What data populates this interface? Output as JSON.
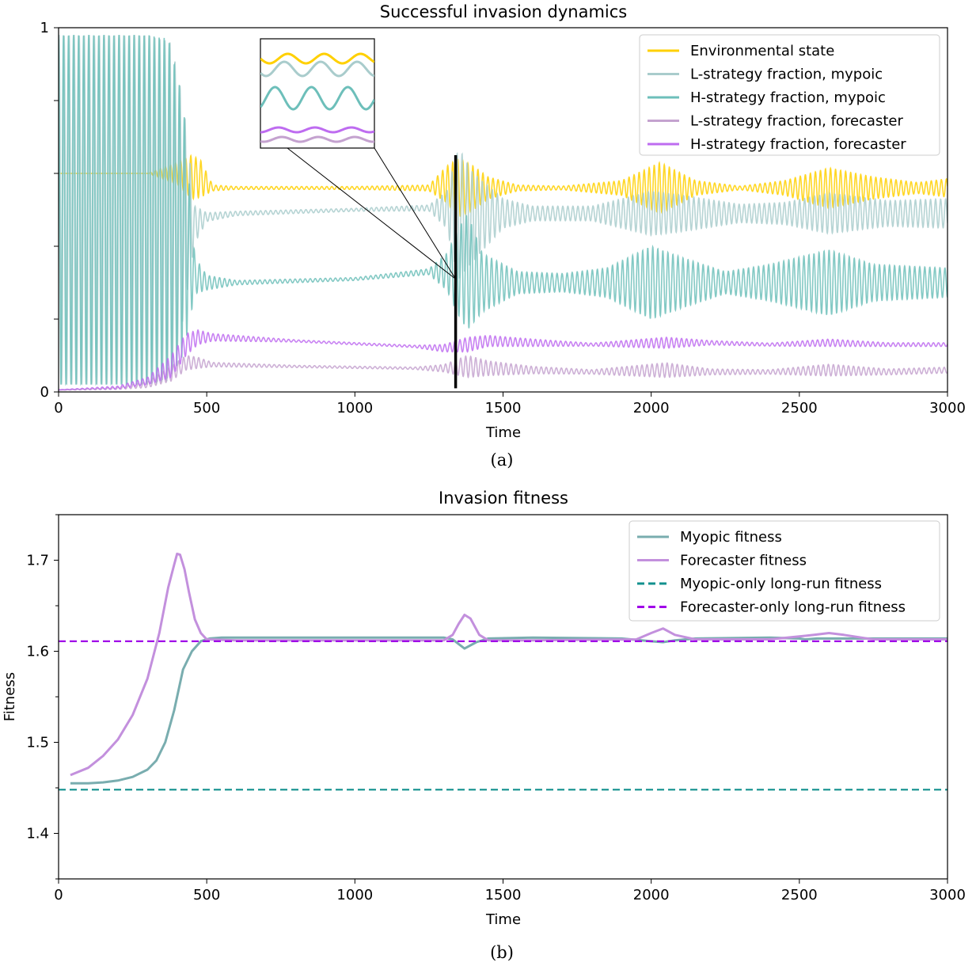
{
  "chart_data": [
    {
      "type": "line",
      "title": "Successful invasion dynamics",
      "caption": "(a)",
      "xlabel": "Time",
      "ylabel": "",
      "xlim": [
        0,
        3000
      ],
      "ylim": [
        0,
        1
      ],
      "xticks": [
        0,
        500,
        1000,
        1500,
        2000,
        2500,
        3000
      ],
      "yticks": [
        0,
        0.2,
        0.4,
        0.6,
        0.8,
        1
      ],
      "ytick_labels": [
        "0",
        "",
        "",
        "",
        "",
        "1"
      ],
      "legend_position": "top-right",
      "marker_line_x": 1340,
      "marker_line_y": [
        0.01,
        0.65
      ],
      "inset": {
        "description_free": true,
        "connects_to_x": 1340
      },
      "series": [
        {
          "name": "Environmental state",
          "color": "#FFD000",
          "envelope": {
            "t": [
              0,
              300,
              400,
              450,
              480,
              520,
              600,
              1000,
              1250,
              1310,
              1350,
              1400,
              1450,
              1550,
              1700,
              1900,
              2030,
              2150,
              2300,
              2450,
              2600,
              2750,
              2900,
              3000
            ],
            "center": [
              0.6,
              0.6,
              0.6,
              0.59,
              0.585,
              0.56,
              0.56,
              0.56,
              0.56,
              0.57,
              0.56,
              0.56,
              0.56,
              0.56,
              0.56,
              0.56,
              0.56,
              0.56,
              0.56,
              0.56,
              0.56,
              0.56,
              0.56,
              0.56
            ],
            "amp": [
              0,
              0,
              0.03,
              0.06,
              0.05,
              0.008,
              0.004,
              0.004,
              0.008,
              0.05,
              0.08,
              0.06,
              0.03,
              0.008,
              0.005,
              0.02,
              0.07,
              0.02,
              0.005,
              0.02,
              0.055,
              0.03,
              0.015,
              0.025
            ]
          }
        },
        {
          "name": "L-strategy fraction, mypoic",
          "color": "#A9CCCC",
          "envelope": {
            "t": [
              0,
              300,
              380,
              420,
              460,
              500,
              600,
              1000,
              1250,
              1310,
              1350,
              1400,
              1500,
              1600,
              1800,
              2000,
              2100,
              2300,
              2450,
              2600,
              2800,
              3000
            ],
            "center": [
              0.5,
              0.5,
              0.5,
              0.5,
              0.46,
              0.48,
              0.49,
              0.5,
              0.505,
              0.5,
              0.49,
              0.48,
              0.49,
              0.49,
              0.49,
              0.49,
              0.49,
              0.49,
              0.49,
              0.49,
              0.49,
              0.49
            ],
            "amp": [
              0.48,
              0.48,
              0.46,
              0.3,
              0.05,
              0.012,
              0.006,
              0.004,
              0.008,
              0.05,
              0.18,
              0.12,
              0.04,
              0.02,
              0.02,
              0.06,
              0.05,
              0.025,
              0.03,
              0.055,
              0.035,
              0.04
            ]
          }
        },
        {
          "name": "H-strategy fraction, mypoic",
          "color": "#6DBFBA",
          "envelope": {
            "t": [
              0,
              300,
              370,
              420,
              460,
              500,
              600,
              1000,
              1250,
              1310,
              1350,
              1380,
              1430,
              1550,
              1700,
              1850,
              2000,
              2100,
              2250,
              2400,
              2600,
              2750,
              3000
            ],
            "center": [
              0.5,
              0.5,
              0.5,
              0.45,
              0.32,
              0.3,
              0.3,
              0.31,
              0.33,
              0.33,
              0.33,
              0.33,
              0.3,
              0.3,
              0.3,
              0.3,
              0.3,
              0.3,
              0.3,
              0.3,
              0.3,
              0.3,
              0.3
            ],
            "amp": [
              0.48,
              0.48,
              0.47,
              0.35,
              0.05,
              0.02,
              0.006,
              0.004,
              0.008,
              0.05,
              0.12,
              0.16,
              0.08,
              0.03,
              0.025,
              0.04,
              0.1,
              0.07,
              0.03,
              0.05,
              0.09,
              0.05,
              0.04
            ]
          }
        },
        {
          "name": "L-strategy fraction, forecaster",
          "color": "#C4A2CF",
          "envelope": {
            "t": [
              0,
              200,
              300,
              380,
              430,
              470,
              520,
              800,
              1200,
              1300,
              1380,
              1450,
              1600,
              1800,
              2050,
              2200,
              2400,
              2600,
              2800,
              3000
            ],
            "center": [
              0.005,
              0.01,
              0.02,
              0.05,
              0.08,
              0.08,
              0.075,
              0.07,
              0.065,
              0.065,
              0.07,
              0.065,
              0.06,
              0.055,
              0.06,
              0.055,
              0.055,
              0.06,
              0.055,
              0.06
            ],
            "amp": [
              0,
              0.003,
              0.008,
              0.02,
              0.02,
              0.015,
              0.006,
              0.003,
              0.003,
              0.01,
              0.03,
              0.02,
              0.01,
              0.006,
              0.02,
              0.008,
              0.006,
              0.016,
              0.008,
              0.008
            ]
          }
        },
        {
          "name": "H-strategy fraction, forecaster",
          "color": "#BE6CF0",
          "envelope": {
            "t": [
              0,
              200,
              300,
              380,
              430,
              470,
              520,
              800,
              1200,
              1300,
              1380,
              1450,
              1600,
              1800,
              2050,
              2200,
              2400,
              2600,
              2800,
              3000
            ],
            "center": [
              0.006,
              0.012,
              0.03,
              0.07,
              0.13,
              0.15,
              0.15,
              0.14,
              0.125,
              0.12,
              0.13,
              0.14,
              0.135,
              0.13,
              0.135,
              0.135,
              0.13,
              0.135,
              0.13,
              0.13
            ],
            "amp": [
              0,
              0.004,
              0.01,
              0.03,
              0.03,
              0.02,
              0.01,
              0.003,
              0.003,
              0.01,
              0.02,
              0.015,
              0.01,
              0.004,
              0.015,
              0.006,
              0.004,
              0.01,
              0.005,
              0.005
            ]
          }
        }
      ]
    },
    {
      "type": "line",
      "title": "Invasion fitness",
      "caption": "(b)",
      "xlabel": "Time",
      "ylabel": "Fitness",
      "xlim": [
        0,
        3000
      ],
      "ylim": [
        1.35,
        1.75
      ],
      "xticks": [
        0,
        500,
        1000,
        1500,
        2000,
        2500,
        3000
      ],
      "yticks": [
        1.4,
        1.5,
        1.6,
        1.7
      ],
      "yminor": [
        1.35,
        1.45,
        1.55,
        1.65,
        1.75
      ],
      "legend_position": "top-right",
      "series": [
        {
          "name": "Myopic fitness",
          "color": "#79ADAF",
          "x": [
            40,
            100,
            150,
            200,
            250,
            300,
            330,
            360,
            390,
            420,
            450,
            480,
            510,
            550,
            700,
            1000,
            1300,
            1330,
            1370,
            1410,
            1450,
            1600,
            1900,
            2000,
            2040,
            2080,
            2150,
            2400,
            2500,
            2520,
            2560,
            2700,
            3000
          ],
          "y": [
            1.455,
            1.455,
            1.456,
            1.458,
            1.462,
            1.47,
            1.48,
            1.5,
            1.535,
            1.58,
            1.6,
            1.611,
            1.614,
            1.615,
            1.615,
            1.615,
            1.615,
            1.613,
            1.603,
            1.61,
            1.614,
            1.615,
            1.614,
            1.611,
            1.61,
            1.612,
            1.614,
            1.615,
            1.614,
            1.613,
            1.614,
            1.614,
            1.614
          ]
        },
        {
          "name": "Forecaster fitness",
          "color": "#C390DD",
          "x": [
            40,
            100,
            150,
            200,
            250,
            300,
            340,
            370,
            390,
            400,
            410,
            425,
            440,
            460,
            480,
            500,
            600,
            1000,
            1300,
            1330,
            1350,
            1370,
            1390,
            1420,
            1450,
            1600,
            1950,
            2000,
            2040,
            2080,
            2150,
            2400,
            2550,
            2600,
            2650,
            2750,
            3000
          ],
          "y": [
            1.464,
            1.472,
            1.485,
            1.503,
            1.53,
            1.57,
            1.62,
            1.67,
            1.695,
            1.707,
            1.706,
            1.69,
            1.665,
            1.635,
            1.62,
            1.613,
            1.612,
            1.612,
            1.612,
            1.618,
            1.63,
            1.64,
            1.636,
            1.618,
            1.612,
            1.612,
            1.613,
            1.62,
            1.625,
            1.618,
            1.613,
            1.613,
            1.618,
            1.62,
            1.618,
            1.613,
            1.613
          ]
        },
        {
          "name": "Myopic-only long-run fitness",
          "color": "#12908E",
          "dashed": true,
          "x": [
            0,
            3000
          ],
          "y": [
            1.448,
            1.448
          ]
        },
        {
          "name": "Forecaster-only long-run fitness",
          "color": "#A000E8",
          "dashed": true,
          "x": [
            0,
            3000
          ],
          "y": [
            1.611,
            1.611
          ]
        }
      ]
    }
  ]
}
